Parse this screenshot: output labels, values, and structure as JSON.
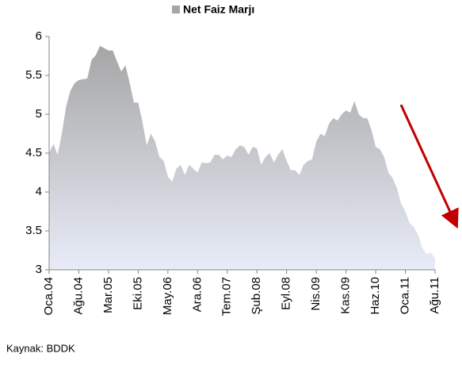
{
  "chart_data": {
    "type": "area",
    "source": "Kaynak: BDDK",
    "categories": [
      "Oca.04",
      null,
      null,
      null,
      null,
      null,
      null,
      "Ağu.04",
      null,
      null,
      null,
      null,
      null,
      null,
      "Mar.05",
      null,
      null,
      null,
      null,
      null,
      null,
      "Eki.05",
      null,
      null,
      null,
      null,
      null,
      null,
      "May.06",
      null,
      null,
      null,
      null,
      null,
      null,
      "Ara.06",
      null,
      null,
      null,
      null,
      null,
      null,
      "Tem.07",
      null,
      null,
      null,
      null,
      null,
      null,
      "Şub.08",
      null,
      null,
      null,
      null,
      null,
      null,
      "Eyl.08",
      null,
      null,
      null,
      null,
      null,
      null,
      "Nis.09",
      null,
      null,
      null,
      null,
      null,
      null,
      "Kas.09",
      null,
      null,
      null,
      null,
      null,
      null,
      "Haz.10",
      null,
      null,
      null,
      null,
      null,
      null,
      "Oca.11",
      null,
      null,
      null,
      null,
      null,
      null,
      "Ağu.11"
    ],
    "series": [
      {
        "name": "Net Faiz Marjı",
        "color": "#a6a6a6",
        "values": [
          4.5,
          4.62,
          4.48,
          4.75,
          5.1,
          5.3,
          5.4,
          5.44,
          5.45,
          5.46,
          5.7,
          5.76,
          5.88,
          5.85,
          5.82,
          5.82,
          5.68,
          5.55,
          5.63,
          5.4,
          5.15,
          5.15,
          4.9,
          4.6,
          4.75,
          4.65,
          4.45,
          4.4,
          4.2,
          4.13,
          4.3,
          4.35,
          4.22,
          4.35,
          4.3,
          4.25,
          4.38,
          4.37,
          4.38,
          4.48,
          4.48,
          4.42,
          4.47,
          4.45,
          4.55,
          4.6,
          4.58,
          4.48,
          4.58,
          4.56,
          4.35,
          4.45,
          4.5,
          4.38,
          4.48,
          4.55,
          4.4,
          4.28,
          4.28,
          4.22,
          4.35,
          4.4,
          4.42,
          4.65,
          4.75,
          4.72,
          4.88,
          4.95,
          4.92,
          5.0,
          5.05,
          5.02,
          5.17,
          5.0,
          4.95,
          4.95,
          4.8,
          4.58,
          4.55,
          4.45,
          4.25,
          4.18,
          4.05,
          3.85,
          3.75,
          3.6,
          3.55,
          3.45,
          3.28,
          3.2,
          3.22,
          3.15
        ]
      }
    ],
    "ylim": [
      3,
      6
    ],
    "yticks": [
      3,
      3.5,
      4,
      4.5,
      5,
      5.5,
      6
    ]
  }
}
